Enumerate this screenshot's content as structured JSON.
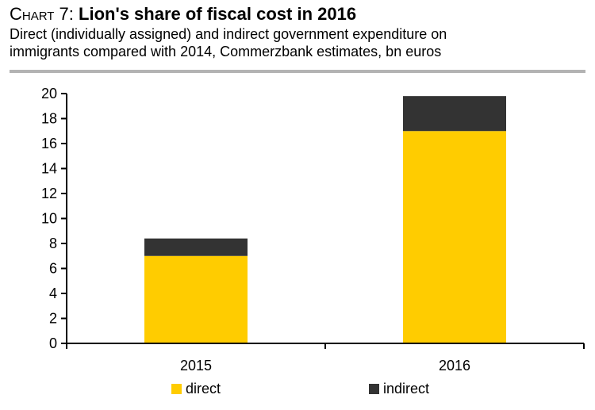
{
  "header": {
    "title_prefix": "Chart 7:",
    "title_main": "Lion's share of fiscal cost in 2016",
    "subtitle_line1": "Direct (individually assigned) and indirect government expenditure on",
    "subtitle_line2": "immigrants compared with 2014, Commerzbank estimates, bn euros"
  },
  "chart_data": {
    "type": "bar",
    "stacked": true,
    "categories": [
      "2015",
      "2016"
    ],
    "series": [
      {
        "name": "direct",
        "values": [
          7.0,
          17.0
        ],
        "color": "#ffcc00"
      },
      {
        "name": "indirect",
        "values": [
          1.4,
          2.8
        ],
        "color": "#333333"
      }
    ],
    "ylim": [
      0,
      20
    ],
    "yticks": [
      0,
      2,
      4,
      6,
      8,
      10,
      12,
      14,
      16,
      18,
      20
    ],
    "grid": false,
    "legend_position": "bottom"
  }
}
